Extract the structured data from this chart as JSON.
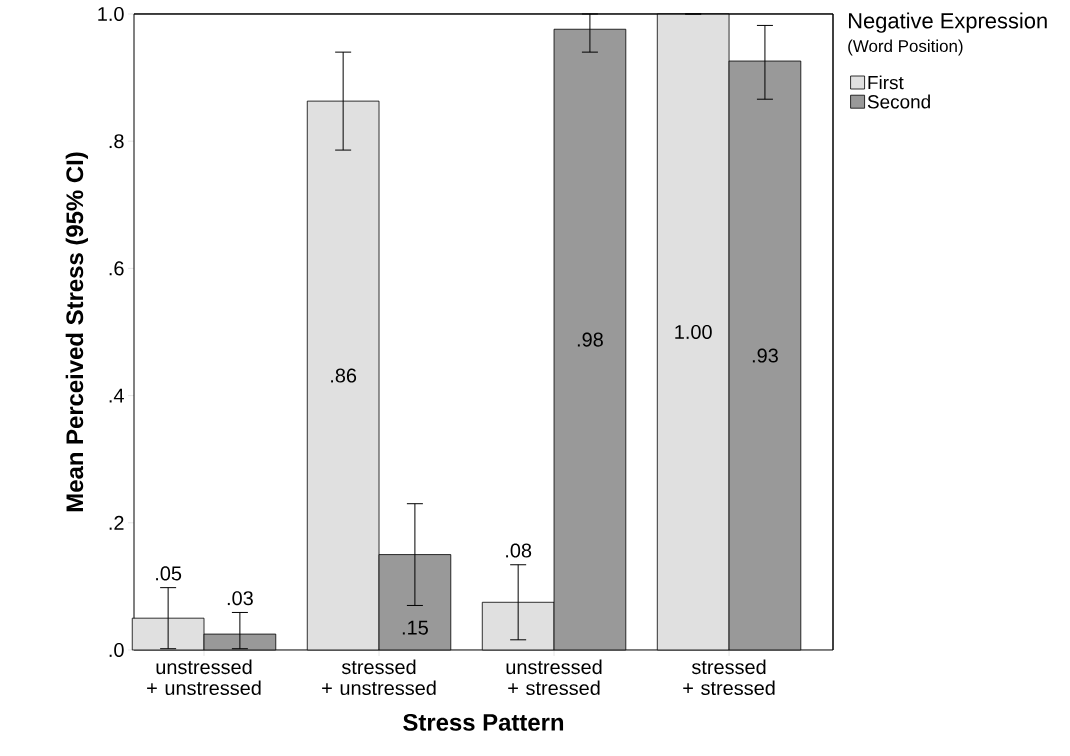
{
  "chart_data": {
    "type": "bar",
    "xlabel": "Stress Pattern",
    "ylabel": "Mean Perceived Stress (95% CI)",
    "legend_title": "Negative Expression",
    "annotations": [
      "(Word Position)"
    ],
    "categories": [
      "unstressed + unstressed",
      "stressed + unstressed",
      "unstressed + stressed",
      "stressed + stressed"
    ],
    "series": [
      {
        "name": "First",
        "color": "#e0e0e0",
        "values": [
          0.05,
          0.863,
          0.075,
          1.0
        ],
        "errors": [
          [
            0.002,
            0.098
          ],
          [
            0.786,
            0.94
          ],
          [
            0.016,
            0.134
          ],
          [
            1.0,
            1.0
          ]
        ],
        "value_labels": [
          ".05",
          ".86",
          ".08",
          "1.00"
        ]
      },
      {
        "name": "Second",
        "color": "#999999",
        "values": [
          0.025,
          0.15,
          0.976,
          0.926
        ],
        "errors": [
          [
            0.002,
            0.059
          ],
          [
            0.07,
            0.23
          ],
          [
            0.94,
            1.0
          ],
          [
            0.866,
            0.982
          ]
        ],
        "value_labels": [
          ".03",
          ".15",
          ".98",
          ".93"
        ]
      }
    ],
    "ylim": [
      0,
      1.0
    ],
    "yticks": [
      {
        "value": 0,
        "label": ".0"
      },
      {
        "value": 0.2,
        "label": ".2"
      },
      {
        "value": 0.4,
        "label": ".4"
      },
      {
        "value": 0.6,
        "label": ".6"
      },
      {
        "value": 0.8,
        "label": ".8"
      },
      {
        "value": 1.0,
        "label": "1.0"
      }
    ],
    "legend": "right",
    "grid": false
  }
}
